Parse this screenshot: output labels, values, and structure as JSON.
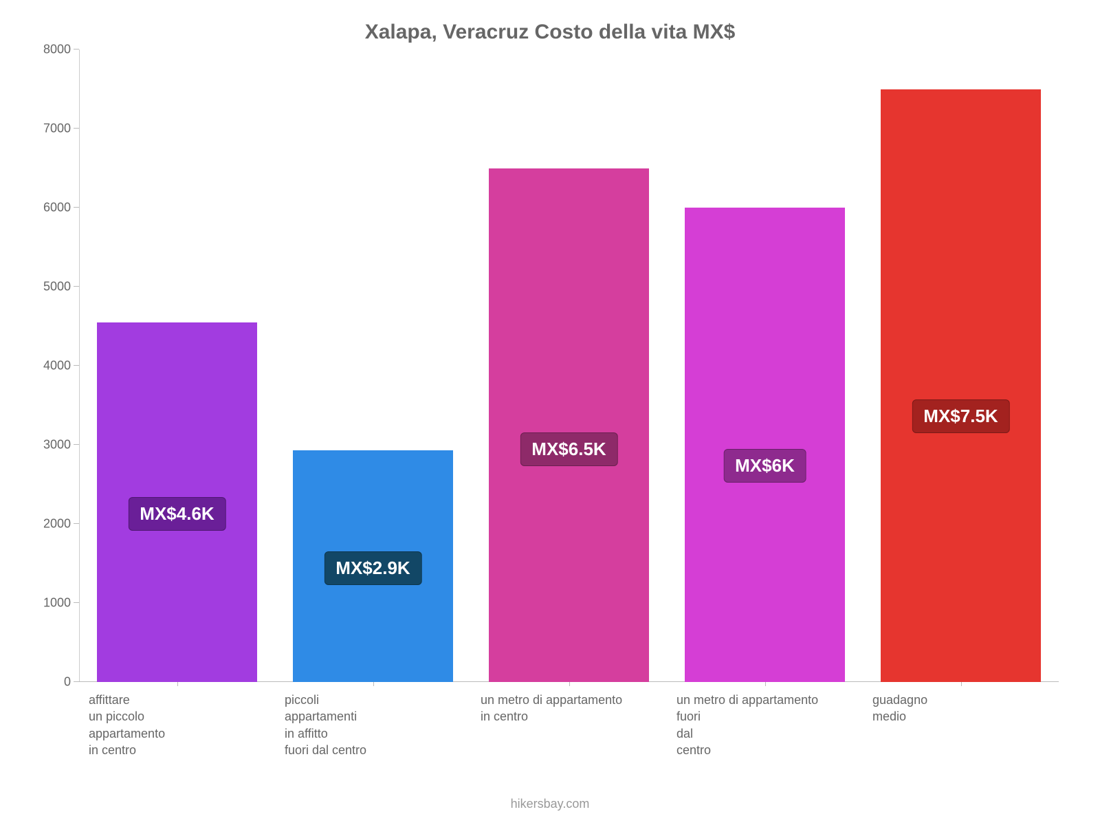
{
  "chart": {
    "type": "bar",
    "title": "Xalapa, Veracruz Costo della vita MX$",
    "title_color": "#666666",
    "title_fontsize": 30,
    "background_color": "#ffffff",
    "axis_color": "#cccccc",
    "tick_color": "#666666",
    "tick_fontsize": 18,
    "label_color": "#666666",
    "label_fontsize": 18,
    "ylim": [
      0,
      8000
    ],
    "ytick_step": 1000,
    "yticks": [
      0,
      1000,
      2000,
      3000,
      4000,
      5000,
      6000,
      7000,
      8000
    ],
    "bar_width_pct": 82,
    "bars": [
      {
        "label": "affittare\nun piccolo\nappartamento\nin centro",
        "value": 4550,
        "color": "#a23ce0",
        "badge_text": "MX$4.6K",
        "badge_bg": "#6a1f98"
      },
      {
        "label": "piccoli\nappartamenti\nin affitto\nfuori dal centro",
        "value": 2930,
        "color": "#2f8be6",
        "badge_text": "MX$2.9K",
        "badge_bg": "#124766"
      },
      {
        "label": "un metro di appartamento\nin centro",
        "value": 6500,
        "color": "#d53e9e",
        "badge_text": "MX$6.5K",
        "badge_bg": "#8e2a69"
      },
      {
        "label": "un metro di appartamento\nfuori\ndal\ncentro",
        "value": 6000,
        "color": "#d53ed5",
        "badge_text": "MX$6K",
        "badge_bg": "#8e2a8e"
      },
      {
        "label": "guadagno\nmedio",
        "value": 7500,
        "color": "#e6352f",
        "badge_text": "MX$7.5K",
        "badge_bg": "#a3221f"
      }
    ],
    "credit": "hikersbay.com",
    "credit_color": "#999999"
  }
}
